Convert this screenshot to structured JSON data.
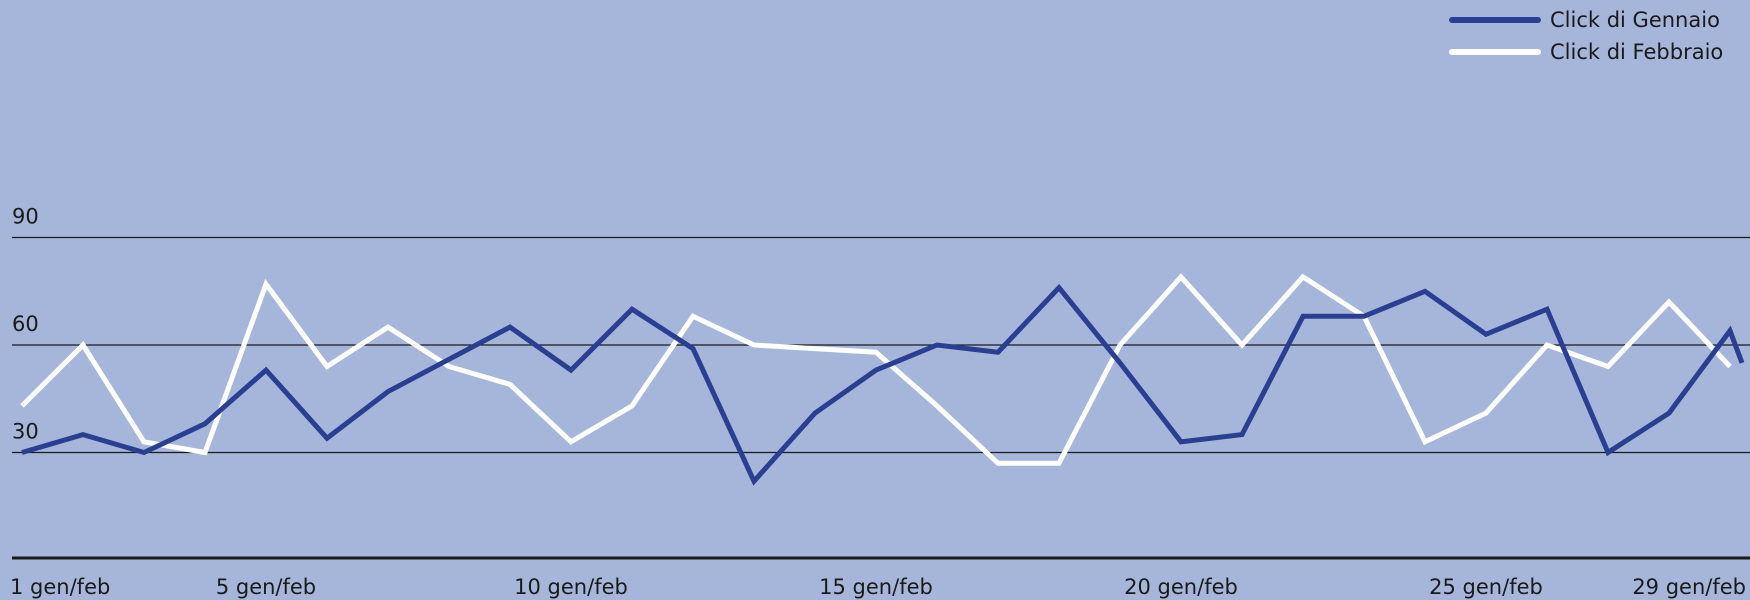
{
  "chart_data": {
    "type": "line",
    "x_tick_labels": [
      {
        "day": 1,
        "label": "1 gen/feb"
      },
      {
        "day": 5,
        "label": "5 gen/feb"
      },
      {
        "day": 10,
        "label": "10 gen/feb"
      },
      {
        "day": 15,
        "label": "15 gen/feb"
      },
      {
        "day": 20,
        "label": "20 gen/feb"
      },
      {
        "day": 25,
        "label": "25 gen/feb"
      },
      {
        "day": 29,
        "label": "29 gen/feb"
      }
    ],
    "y_ticks": [
      30,
      60,
      90
    ],
    "ylim": [
      0,
      120
    ],
    "xlim": [
      1,
      29
    ],
    "grid": true,
    "legend_position": "top-right",
    "series": [
      {
        "name": "Click di Gennaio",
        "color": "#2b3f92",
        "x": [
          1,
          2,
          3,
          4,
          5,
          6,
          7,
          8,
          9,
          10,
          11,
          12,
          13,
          14,
          15,
          16,
          17,
          18,
          19,
          20,
          21,
          22,
          23,
          24,
          25,
          26,
          27,
          28,
          29,
          30
        ],
        "y": [
          30,
          35,
          30,
          38,
          53,
          34,
          47,
          56,
          65,
          53,
          70,
          59,
          22,
          41,
          53,
          60,
          58,
          76,
          55,
          33,
          35,
          68,
          68,
          75,
          63,
          70,
          30,
          41,
          64,
          55
        ]
      },
      {
        "name": "Click di Febbraio",
        "color": "#ffffff",
        "x": [
          1,
          2,
          3,
          4,
          5,
          6,
          7,
          8,
          9,
          10,
          11,
          12,
          13,
          14,
          15,
          16,
          17,
          18,
          19,
          20,
          21,
          22,
          23,
          24,
          25,
          26,
          27,
          28,
          29
        ],
        "y": [
          43,
          60,
          33,
          30,
          77,
          54,
          65,
          54,
          49,
          33,
          43,
          68,
          60,
          59,
          58,
          43,
          27,
          27,
          60,
          79,
          60,
          79,
          68,
          33,
          41,
          60,
          54,
          72,
          54
        ]
      }
    ]
  }
}
